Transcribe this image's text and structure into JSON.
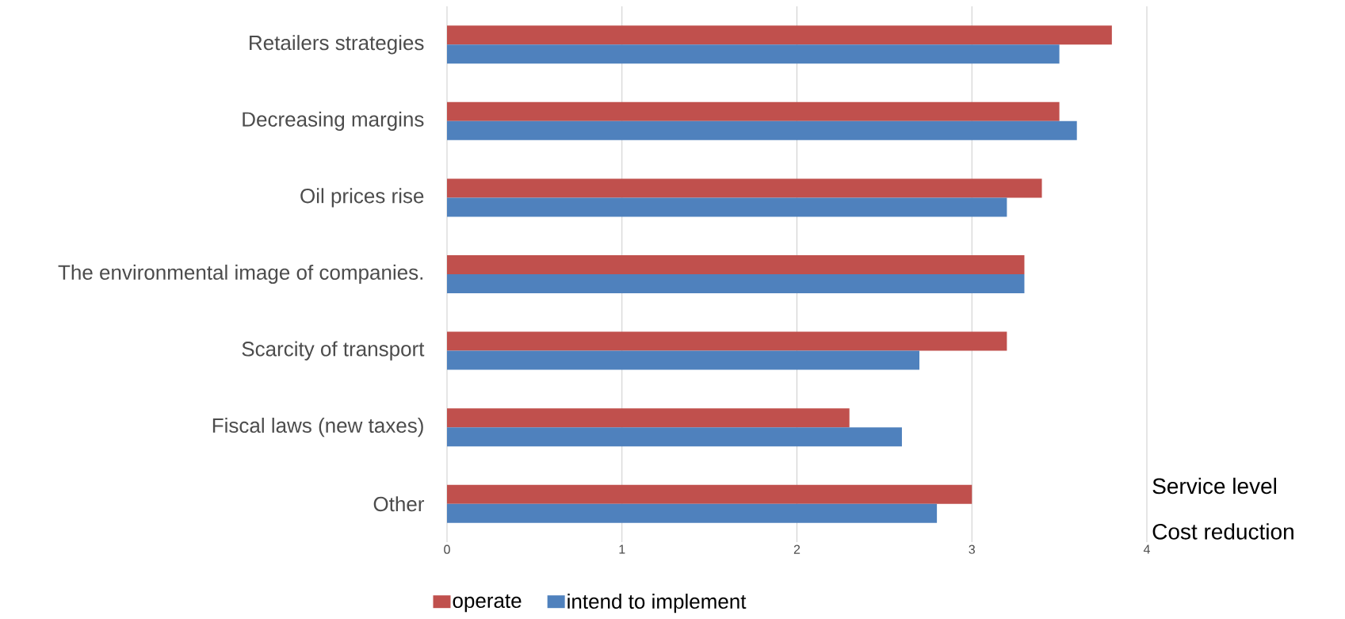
{
  "chart_data": {
    "type": "bar",
    "orientation": "horizontal",
    "categories": [
      "Retailers strategies",
      "Decreasing margins",
      "Oil prices rise",
      "The environmental image of companies.",
      "Scarcity of transport",
      "Fiscal laws (new taxes)",
      "Other"
    ],
    "series": [
      {
        "name": "operate",
        "color": "#c0504d",
        "values": [
          3.8,
          3.5,
          3.4,
          3.3,
          3.2,
          2.3,
          3.0
        ]
      },
      {
        "name": "intend to implement",
        "color": "#4f81bd",
        "values": [
          3.5,
          3.6,
          3.2,
          3.3,
          2.7,
          2.6,
          2.8
        ]
      }
    ],
    "xlim": [
      0,
      4
    ],
    "xticks": [
      0,
      1,
      2,
      3,
      4
    ],
    "grid": "x",
    "legend": "bottom",
    "annotations": [
      "Service level",
      "Cost reduction"
    ]
  }
}
